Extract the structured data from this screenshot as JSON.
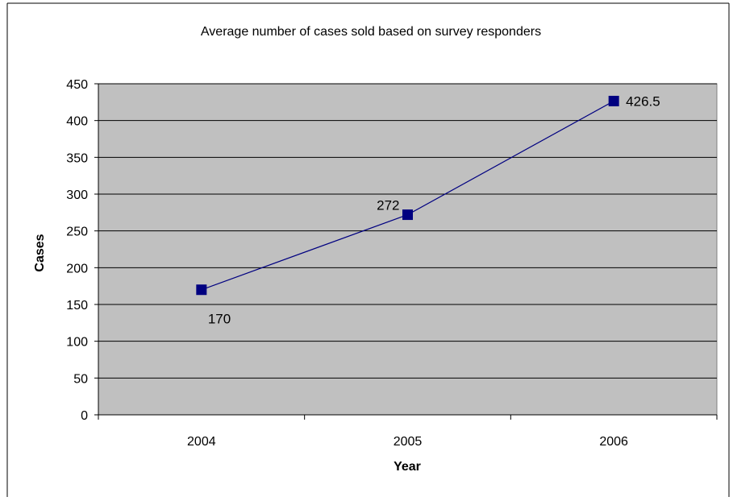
{
  "chart_data": {
    "type": "line",
    "title": "Average number of cases sold based on survey responders",
    "xlabel": "Year",
    "ylabel": "Cases",
    "categories": [
      "2004",
      "2005",
      "2006"
    ],
    "series": [
      {
        "values": [
          170,
          272,
          426.5
        ],
        "labels": [
          "170",
          "272",
          "426.5"
        ]
      }
    ],
    "ylim": [
      0,
      450
    ],
    "yticks": [
      "0",
      "50",
      "100",
      "150",
      "200",
      "250",
      "300",
      "350",
      "400",
      "450"
    ],
    "grid": true,
    "legend": "none",
    "colors": {
      "plot_background": "#c0c0c0",
      "line": "#000080",
      "marker": "#000080",
      "gridline": "#000000"
    }
  }
}
